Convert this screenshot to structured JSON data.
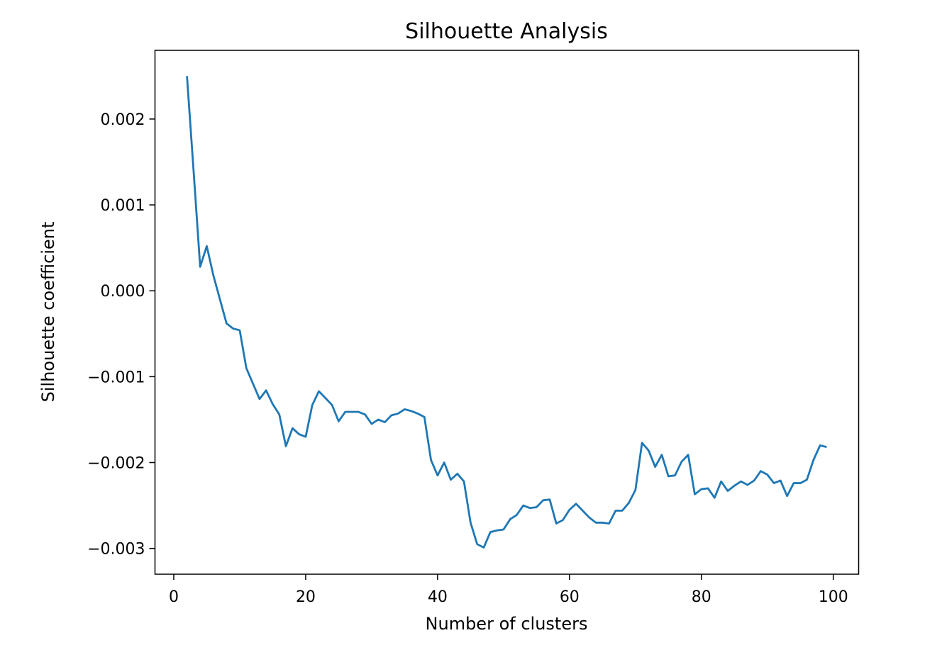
{
  "chart_data": {
    "type": "line",
    "title": "Silhouette Analysis",
    "xlabel": "Number of clusters",
    "ylabel": "Silhouette coefficient",
    "xlim": [
      -2.85,
      103.85
    ],
    "ylim": [
      -0.0033,
      0.0028
    ],
    "xticks": [
      0,
      20,
      40,
      60,
      80,
      100
    ],
    "xtick_labels": [
      "0",
      "20",
      "40",
      "60",
      "80",
      "100"
    ],
    "yticks": [
      -0.003,
      -0.002,
      -0.001,
      0.0,
      0.001,
      0.002
    ],
    "ytick_labels": [
      "−0.003",
      "−0.002",
      "−0.001",
      "0.000",
      "0.001",
      "0.002"
    ],
    "grid": false,
    "series": [
      {
        "color": "#1f77b4",
        "x": [
          2,
          3,
          4,
          5,
          6,
          7,
          8,
          9,
          10,
          11,
          12,
          13,
          14,
          15,
          16,
          17,
          18,
          19,
          20,
          21,
          22,
          23,
          24,
          25,
          26,
          27,
          28,
          29,
          30,
          31,
          32,
          33,
          34,
          35,
          36,
          37,
          38,
          39,
          40,
          41,
          42,
          43,
          44,
          45,
          46,
          47,
          48,
          49,
          50,
          51,
          52,
          53,
          54,
          55,
          56,
          57,
          58,
          59,
          60,
          61,
          62,
          63,
          64,
          65,
          66,
          67,
          68,
          69,
          70,
          71,
          72,
          73,
          74,
          75,
          76,
          77,
          78,
          79,
          80,
          81,
          82,
          83,
          84,
          85,
          86,
          87,
          88,
          89,
          90,
          91,
          92,
          93,
          94,
          95,
          96,
          97,
          98,
          99
        ],
        "y": [
          0.0025,
          0.0014,
          0.00028,
          0.00052,
          0.00018,
          -0.0001,
          -0.00038,
          -0.00044,
          -0.00046,
          -0.0009,
          -0.00108,
          -0.00126,
          -0.00116,
          -0.00132,
          -0.00144,
          -0.00181,
          -0.0016,
          -0.00167,
          -0.0017,
          -0.00133,
          -0.00117,
          -0.00125,
          -0.00133,
          -0.00152,
          -0.00141,
          -0.00141,
          -0.00141,
          -0.00144,
          -0.00155,
          -0.0015,
          -0.00153,
          -0.00145,
          -0.00143,
          -0.00138,
          -0.0014,
          -0.00143,
          -0.00147,
          -0.00197,
          -0.00215,
          -0.002,
          -0.0022,
          -0.00213,
          -0.00222,
          -0.0027,
          -0.00295,
          -0.00299,
          -0.00281,
          -0.00279,
          -0.00278,
          -0.00266,
          -0.00261,
          -0.0025,
          -0.00253,
          -0.00252,
          -0.00244,
          -0.00243,
          -0.00271,
          -0.00267,
          -0.00255,
          -0.00248,
          -0.00256,
          -0.00264,
          -0.0027,
          -0.0027,
          -0.00271,
          -0.00256,
          -0.00256,
          -0.00247,
          -0.00232,
          -0.00177,
          -0.00186,
          -0.00205,
          -0.00191,
          -0.00216,
          -0.00215,
          -0.00199,
          -0.00191,
          -0.00237,
          -0.00231,
          -0.0023,
          -0.00241,
          -0.00222,
          -0.00233,
          -0.00227,
          -0.00222,
          -0.00226,
          -0.00221,
          -0.0021,
          -0.00214,
          -0.00224,
          -0.00221,
          -0.00239,
          -0.00224,
          -0.00224,
          -0.0022,
          -0.00197,
          -0.0018,
          -0.00182
        ]
      }
    ]
  }
}
